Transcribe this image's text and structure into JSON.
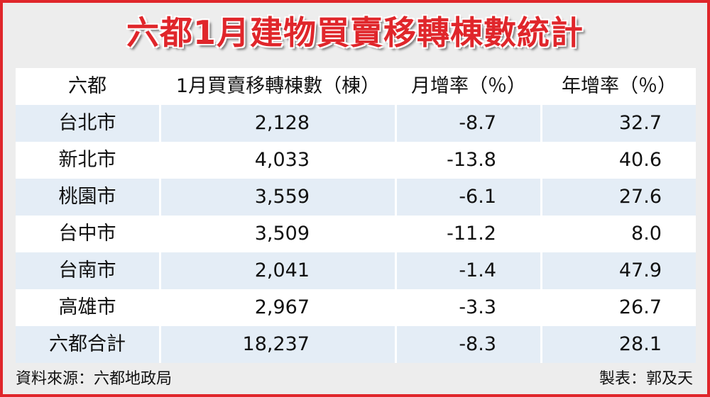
{
  "header": {
    "title": "六都1月建物買賣移轉棟數統計"
  },
  "table": {
    "columns": [
      "六都",
      "1月買賣移轉棟數（棟）",
      "月增率（％）",
      "年增率（％）"
    ],
    "rows": [
      [
        "台北市",
        "2,128",
        "-8.7",
        "32.7"
      ],
      [
        "新北市",
        "4,033",
        "-13.8",
        "40.6"
      ],
      [
        "桃園市",
        "3,559",
        "-6.1",
        "27.6"
      ],
      [
        "台中市",
        "3,509",
        "-11.2",
        "8.0"
      ],
      [
        "台南市",
        "2,041",
        "-1.4",
        "47.9"
      ],
      [
        "高雄市",
        "2,967",
        "-3.3",
        "26.7"
      ],
      [
        "六都合計",
        "18,237",
        "-8.3",
        "28.1"
      ]
    ]
  },
  "footer": {
    "source": "資料來源：六都地政局",
    "author": "製表：郭及天"
  }
}
